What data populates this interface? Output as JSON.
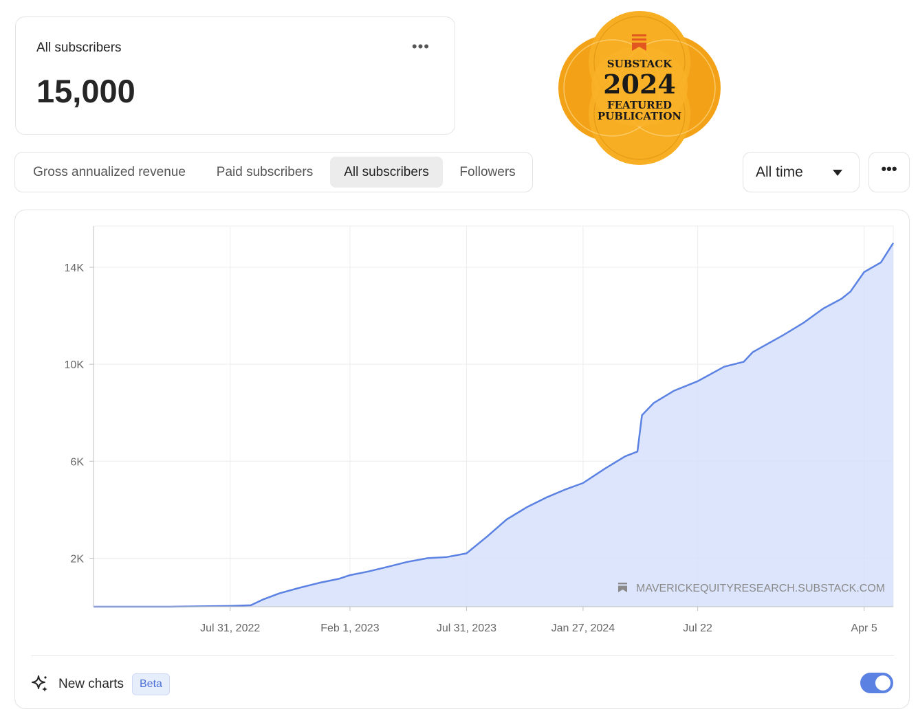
{
  "summary_card": {
    "title": "All subscribers",
    "value": "15,000",
    "menu_icon": "ellipsis-icon"
  },
  "badge": {
    "line1": "SUBSTACK",
    "year": "2024",
    "line3": "FEATURED",
    "line4": "PUBLICATION",
    "primary_color": "#f6a91c"
  },
  "tabs": [
    {
      "label": "Gross annualized revenue",
      "active": false
    },
    {
      "label": "Paid subscribers",
      "active": false
    },
    {
      "label": "All subscribers",
      "active": true
    },
    {
      "label": "Followers",
      "active": false
    }
  ],
  "range": {
    "label": "All time",
    "caret_icon": "caret-down-icon"
  },
  "more_button": {
    "label": "•••"
  },
  "footer": {
    "new_charts_label": "New charts",
    "beta_label": "Beta",
    "toggle_on": true
  },
  "chart_data": {
    "type": "area",
    "title": "",
    "xlabel": "",
    "ylabel": "",
    "x_ticks": [
      "Jul 31, 2022",
      "Feb 1, 2023",
      "Jul 31, 2023",
      "Jan 27, 2024",
      "Jul 22",
      "Apr 5"
    ],
    "y_ticks": [
      "2K",
      "6K",
      "10K",
      "14K"
    ],
    "y_tick_values": [
      2000,
      6000,
      10000,
      14000
    ],
    "ylim": [
      0,
      15700
    ],
    "grid": true,
    "line_color": "#5b82e3",
    "fill_color": "#d6e0fa",
    "watermark": "MAVERICKEQUITYRESEARCH.SUBSTACK.COM",
    "series": [
      {
        "x": [
          "2022-01-01",
          "2022-03-01",
          "2022-05-01",
          "2022-07-31",
          "2022-09-01",
          "2022-09-20",
          "2022-10-15",
          "2022-11-15",
          "2022-12-15",
          "2023-01-15",
          "2023-02-01",
          "2023-03-01",
          "2023-04-01",
          "2023-05-01",
          "2023-06-01",
          "2023-07-01",
          "2023-07-31",
          "2023-09-01",
          "2023-10-01",
          "2023-11-01",
          "2023-12-01",
          "2024-01-01",
          "2024-01-27",
          "2024-03-01",
          "2024-04-01",
          "2024-04-20",
          "2024-04-27",
          "2024-05-15",
          "2024-06-15",
          "2024-07-22",
          "2024-09-01",
          "2024-10-01",
          "2024-10-15",
          "2024-12-01",
          "2025-01-01",
          "2025-02-01",
          "2025-03-01",
          "2025-03-15",
          "2025-04-05",
          "2025-05-01",
          "2025-05-20"
        ],
        "y": [
          0,
          0,
          0,
          30,
          60,
          300,
          550,
          780,
          980,
          1150,
          1300,
          1450,
          1650,
          1850,
          2000,
          2050,
          2200,
          2900,
          3600,
          4100,
          4500,
          4850,
          5100,
          5700,
          6200,
          6400,
          7900,
          8400,
          8900,
          9300,
          9900,
          10100,
          10500,
          11200,
          11700,
          12300,
          12700,
          13000,
          13800,
          14200,
          15000
        ]
      }
    ]
  }
}
